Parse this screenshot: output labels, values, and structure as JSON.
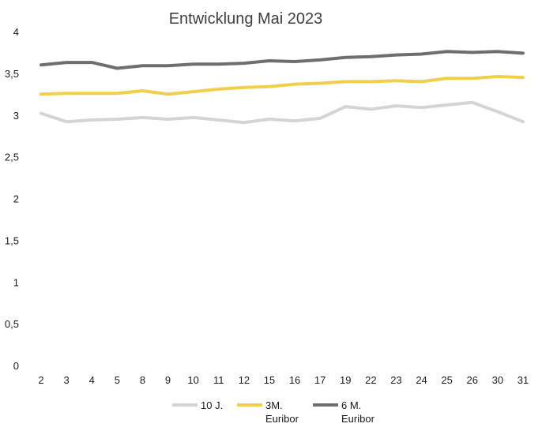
{
  "chart_data": {
    "type": "line",
    "title": "Entwicklung Mai 2023",
    "xlabel": "",
    "ylabel": "",
    "categories": [
      "2",
      "3",
      "4",
      "5",
      "8",
      "9",
      "10",
      "11",
      "12",
      "15",
      "16",
      "17",
      "19",
      "22",
      "23",
      "24",
      "25",
      "26",
      "30",
      "31"
    ],
    "yticks": [
      "0",
      "0,5",
      "1",
      "1,5",
      "2",
      "2,5",
      "3",
      "3,5",
      "4"
    ],
    "ylim": [
      0,
      4
    ],
    "grid": false,
    "legend": "bottom",
    "series": [
      {
        "name": "10 J.",
        "color": "#d4d4d4",
        "values": [
          3.03,
          2.93,
          2.95,
          2.96,
          2.98,
          2.96,
          2.98,
          2.95,
          2.92,
          2.96,
          2.94,
          2.97,
          3.11,
          3.08,
          3.12,
          3.1,
          3.13,
          3.16,
          3.05,
          2.93
        ]
      },
      {
        "name": "3M.\nEuribor",
        "color": "#f0d04a",
        "values": [
          3.26,
          3.27,
          3.27,
          3.27,
          3.3,
          3.26,
          3.29,
          3.32,
          3.34,
          3.35,
          3.38,
          3.39,
          3.41,
          3.41,
          3.42,
          3.41,
          3.45,
          3.45,
          3.47,
          3.46
        ]
      },
      {
        "name": "6 M.\nEuribor",
        "color": "#6e6e6e",
        "values": [
          3.61,
          3.64,
          3.64,
          3.57,
          3.6,
          3.6,
          3.62,
          3.62,
          3.63,
          3.66,
          3.65,
          3.67,
          3.7,
          3.71,
          3.73,
          3.74,
          3.77,
          3.76,
          3.77,
          3.75
        ]
      }
    ]
  }
}
